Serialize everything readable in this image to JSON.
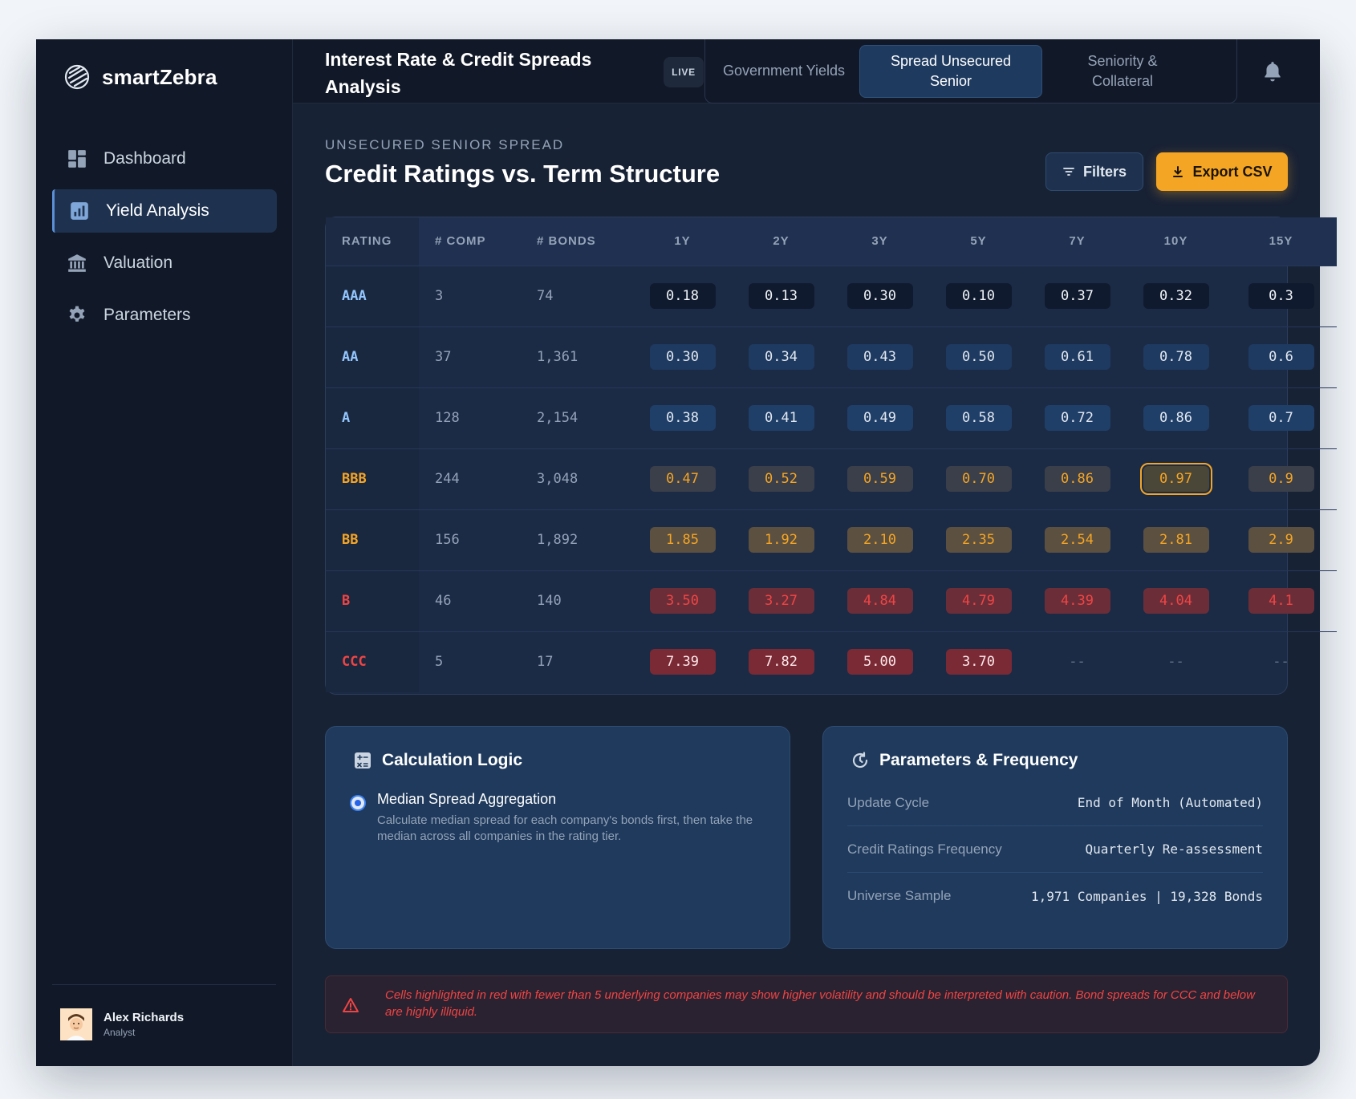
{
  "app": {
    "brand": "smartZebra"
  },
  "sidebar": {
    "items": [
      {
        "label": "Dashboard",
        "icon": "dashboard-icon",
        "active": false
      },
      {
        "label": "Yield Analysis",
        "icon": "chart-icon",
        "active": true
      },
      {
        "label": "Valuation",
        "icon": "bank-icon",
        "active": false
      },
      {
        "label": "Parameters",
        "icon": "gear-icon",
        "active": false
      }
    ],
    "user": {
      "name": "Alex Richards",
      "role": "Analyst"
    }
  },
  "header": {
    "title": "Interest Rate & Credit Spreads Analysis",
    "badge": "LIVE",
    "tabs": [
      {
        "label": "Government Yields",
        "active": false
      },
      {
        "label": "Spread Unsecured Senior",
        "active": true
      },
      {
        "label": "Seniority & Collateral",
        "active": false
      }
    ]
  },
  "main": {
    "overline": "UNSECURED SENIOR SPREAD",
    "title": "Credit Ratings vs. Term Structure",
    "filters_label": "Filters",
    "export_label": "Export CSV"
  },
  "table": {
    "columns": [
      "RATING",
      "# COMP",
      "# BONDS",
      "1Y",
      "2Y",
      "3Y",
      "5Y",
      "7Y",
      "10Y",
      "15Y"
    ],
    "rows": [
      {
        "rating": "AAA",
        "comp": "3",
        "bonds": "74",
        "values": [
          "0.18",
          "0.13",
          "0.30",
          "0.10",
          "0.37",
          "0.32",
          "0.3"
        ],
        "tier": "aaa"
      },
      {
        "rating": "AA",
        "comp": "37",
        "bonds": "1,361",
        "values": [
          "0.30",
          "0.34",
          "0.43",
          "0.50",
          "0.61",
          "0.78",
          "0.6"
        ],
        "tier": "aa"
      },
      {
        "rating": "A",
        "comp": "128",
        "bonds": "2,154",
        "values": [
          "0.38",
          "0.41",
          "0.49",
          "0.58",
          "0.72",
          "0.86",
          "0.7"
        ],
        "tier": "a"
      },
      {
        "rating": "BBB",
        "comp": "244",
        "bonds": "3,048",
        "values": [
          "0.47",
          "0.52",
          "0.59",
          "0.70",
          "0.86",
          "0.97",
          "0.9"
        ],
        "tier": "bbb",
        "highlight": 5
      },
      {
        "rating": "BB",
        "comp": "156",
        "bonds": "1,892",
        "values": [
          "1.85",
          "1.92",
          "2.10",
          "2.35",
          "2.54",
          "2.81",
          "2.9"
        ],
        "tier": "bb"
      },
      {
        "rating": "B",
        "comp": "46",
        "bonds": "140",
        "values": [
          "3.50",
          "3.27",
          "4.84",
          "4.79",
          "4.39",
          "4.04",
          "4.1"
        ],
        "tier": "b"
      },
      {
        "rating": "CCC",
        "comp": "5",
        "bonds": "17",
        "values": [
          "7.39",
          "7.82",
          "5.00",
          "3.70",
          "--",
          "--",
          "--"
        ],
        "tier": "ccc"
      }
    ],
    "colors": {
      "aaa": "#0f1a2e",
      "aa": "#1e3a60",
      "a": "#1f3f68",
      "bbb": "#3b3f4a",
      "bb": "#5c5040",
      "b": "#6b2e38",
      "ccc": "#7a2a35",
      "amber": "#f5a524",
      "red": "#ef4444",
      "blue_text": "#93c5fd"
    }
  },
  "calc_card": {
    "title": "Calculation Logic",
    "option_title": "Median Spread Aggregation",
    "option_desc": "Calculate median spread for each company's bonds first, then take the median across all companies in the rating tier."
  },
  "params_card": {
    "title": "Parameters & Frequency",
    "rows": [
      {
        "label": "Update Cycle",
        "value": "End of Month (Automated)"
      },
      {
        "label": "Credit Ratings Frequency",
        "value": "Quarterly Re-assessment"
      },
      {
        "label": "Universe Sample",
        "value": "1,971 Companies | 19,328 Bonds"
      }
    ]
  },
  "warning": {
    "text": "Cells highlighted in red with fewer than 5 underlying companies may show higher volatility and should be interpreted with caution. Bond spreads for CCC and below are highly illiquid."
  }
}
